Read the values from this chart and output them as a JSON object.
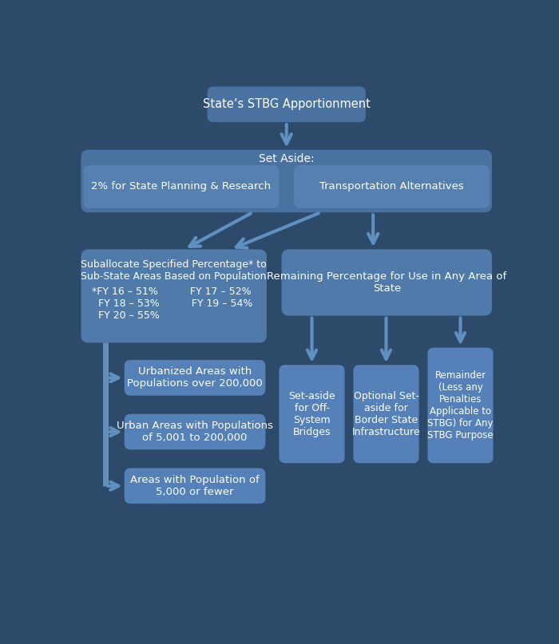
{
  "bg_color": "#2d4a6b",
  "box_color_top": "#4a72a0",
  "box_color_set_aside": "#4a72a0",
  "box_color_row2": "#5580b0",
  "box_color_main": "#4f7aaa",
  "box_color_sub": "#5580b8",
  "text_color": "#ffffff",
  "arrow_color": "#6090c0",
  "title": "State’s STBG Apportionment",
  "set_aside_label": "Set Aside:",
  "box1_label": "2% for State Planning & Research",
  "box2_label": "Transportation Alternatives",
  "left_main_title": "Suballocate Specified Percentage* to\nSub-State Areas Based on Population",
  "left_main_fy": "*FY 16 – 51%          FY 17 – 52%\n  FY 18 – 53%          FY 19 – 54%\n  FY 20 – 55%",
  "right_main_label": "Remaining Percentage for Use in Any Area of\nState",
  "sub_left1": "Urbanized Areas with\nPopulations over 200,000",
  "sub_left2": "Urban Areas with Populations\nof 5,001 to 200,000",
  "sub_left3": "Areas with Population of\n5,000 or fewer",
  "sub_right1": "Set-aside\nfor Off-\nSystem\nBridges",
  "sub_right2": "Optional Set-\naside for\nBorder State\nInfrastructure",
  "sub_right3": "Remainder\n(Less any\nPenalties\nApplicable to\nSTBG) for Any\nSTBG Purpose"
}
